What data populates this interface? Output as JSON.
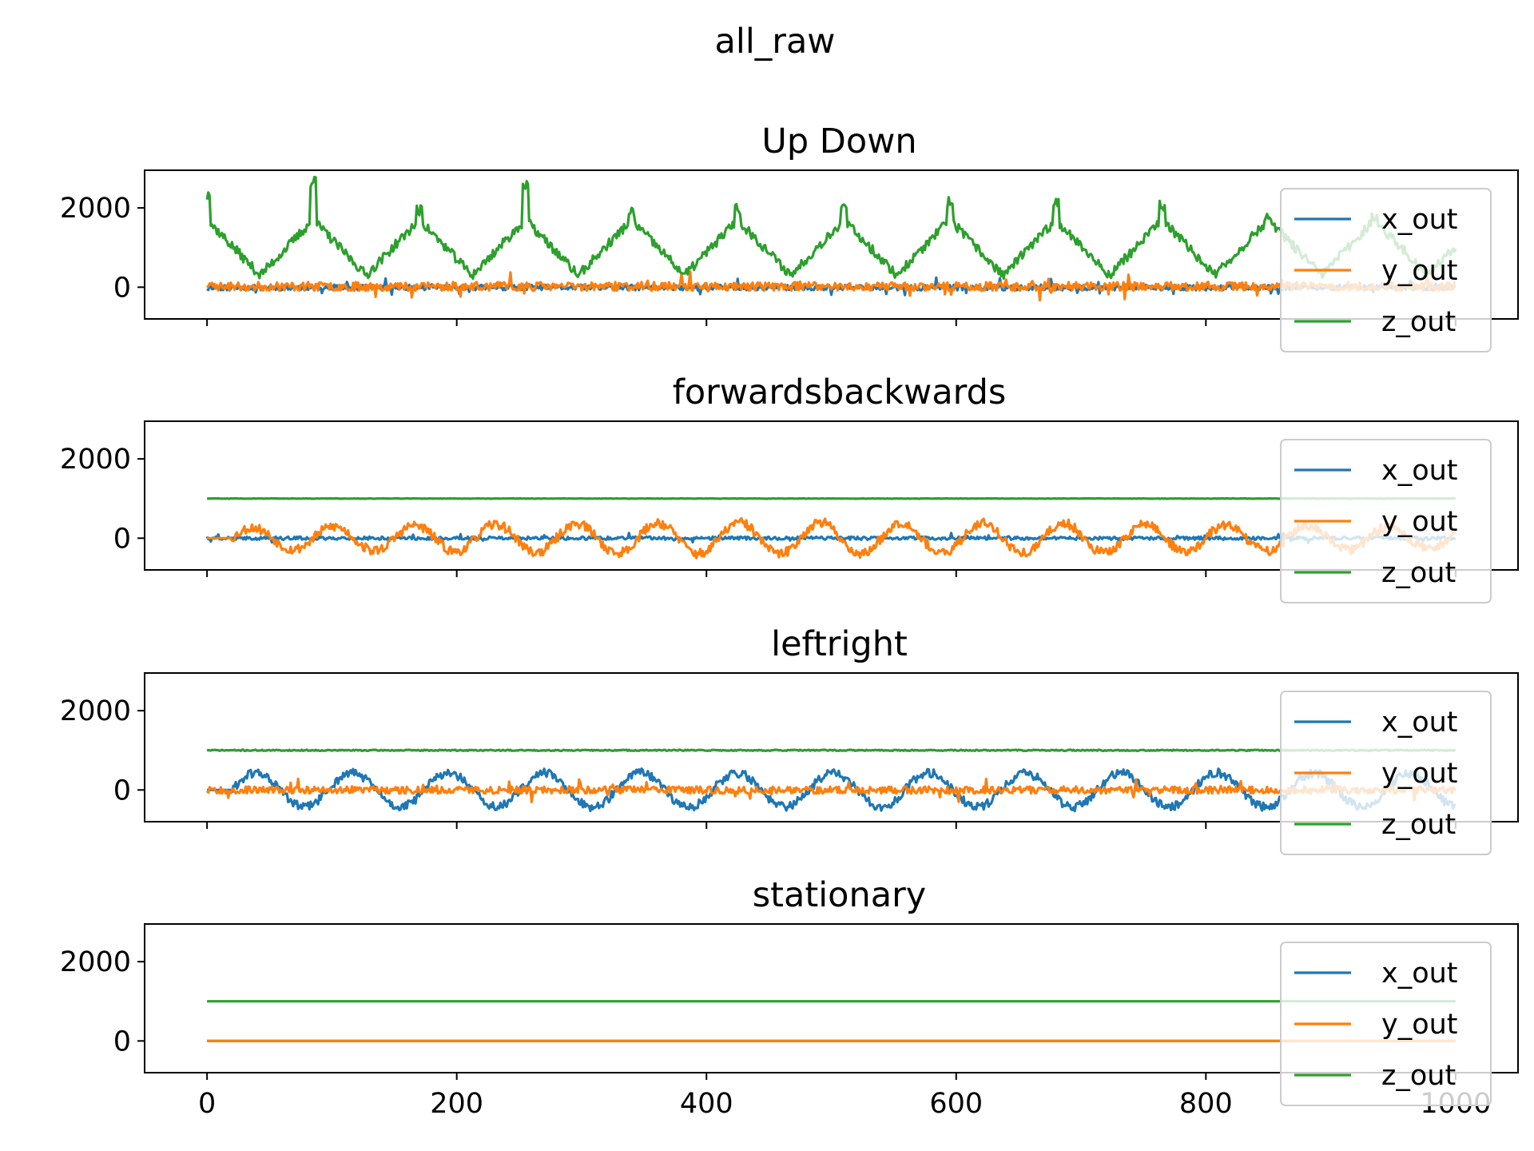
{
  "figure": {
    "suptitle": "all_raw"
  },
  "colors": {
    "x_out": "#1f77b4",
    "y_out": "#ff7f0e",
    "z_out": "#2ca02c"
  },
  "chart_data": [
    {
      "type": "line",
      "title": "Up Down",
      "xlim": [
        -50,
        1050
      ],
      "ylim": [
        -800,
        2950
      ],
      "xticks": [
        0,
        200,
        400,
        600,
        800,
        1000
      ],
      "yticks": [
        0,
        2000
      ],
      "show_xticklabels": false,
      "legend": "upper right",
      "grid": false,
      "series": [
        {
          "name": "x_out",
          "pattern": {
            "kind": "noise",
            "base": -10,
            "amp": 70,
            "seed": 11
          }
        },
        {
          "name": "y_out",
          "pattern": {
            "kind": "noise",
            "base": 20,
            "amp": 110,
            "seed": 23
          }
        },
        {
          "name": "z_out",
          "pattern": {
            "kind": "peaks",
            "period": 85,
            "offset": 0,
            "low": 300,
            "high": 1700,
            "noise": 120,
            "seed": 37,
            "spike_peaks": [
              2400,
              2800,
              2100,
              2750,
              2100,
              2100,
              2300,
              2300,
              2250,
              2200,
              2000,
              1900
            ]
          }
        }
      ]
    },
    {
      "type": "line",
      "title": "forwardsbackwards",
      "xlim": [
        -50,
        1050
      ],
      "ylim": [
        -800,
        2950
      ],
      "xticks": [
        0,
        200,
        400,
        600,
        800,
        1000
      ],
      "yticks": [
        0,
        2000
      ],
      "show_xticklabels": false,
      "legend": "upper right",
      "grid": false,
      "series": [
        {
          "name": "x_out",
          "pattern": {
            "kind": "noise",
            "base": 0,
            "amp": 40,
            "seed": 41
          }
        },
        {
          "name": "y_out",
          "pattern": {
            "kind": "wave",
            "period": 65,
            "amp": 250,
            "growth": 1.6,
            "noise": 120,
            "start": 20,
            "seed": 53
          }
        },
        {
          "name": "z_out",
          "pattern": {
            "kind": "flat",
            "value": 1000,
            "noise": 5,
            "seed": 59
          }
        }
      ]
    },
    {
      "type": "line",
      "title": "leftright",
      "xlim": [
        -50,
        1050
      ],
      "ylim": [
        -800,
        2950
      ],
      "xticks": [
        0,
        200,
        400,
        600,
        800,
        1000
      ],
      "yticks": [
        0,
        2000
      ],
      "show_xticklabels": false,
      "legend": "upper right",
      "grid": false,
      "series": [
        {
          "name": "x_out",
          "pattern": {
            "kind": "wave",
            "period": 77,
            "amp": 430,
            "growth": 1.0,
            "noise": 110,
            "start": 20,
            "seed": 61
          }
        },
        {
          "name": "y_out",
          "pattern": {
            "kind": "noise",
            "base": 0,
            "amp": 90,
            "seed": 67
          }
        },
        {
          "name": "z_out",
          "pattern": {
            "kind": "flat",
            "value": 1000,
            "noise": 15,
            "seed": 71
          }
        }
      ]
    },
    {
      "type": "line",
      "title": "stationary",
      "xlim": [
        -50,
        1050
      ],
      "ylim": [
        -800,
        2950
      ],
      "xticks": [
        0,
        200,
        400,
        600,
        800,
        1000
      ],
      "yticks": [
        0,
        2000
      ],
      "show_xticklabels": true,
      "legend": "upper right",
      "grid": false,
      "series": [
        {
          "name": "x_out",
          "pattern": {
            "kind": "flat",
            "value": 0,
            "noise": 0,
            "seed": 73
          }
        },
        {
          "name": "y_out",
          "pattern": {
            "kind": "flat",
            "value": 0,
            "noise": 0,
            "seed": 79
          }
        },
        {
          "name": "z_out",
          "pattern": {
            "kind": "flat",
            "value": 1000,
            "noise": 0,
            "seed": 83
          }
        }
      ]
    }
  ]
}
